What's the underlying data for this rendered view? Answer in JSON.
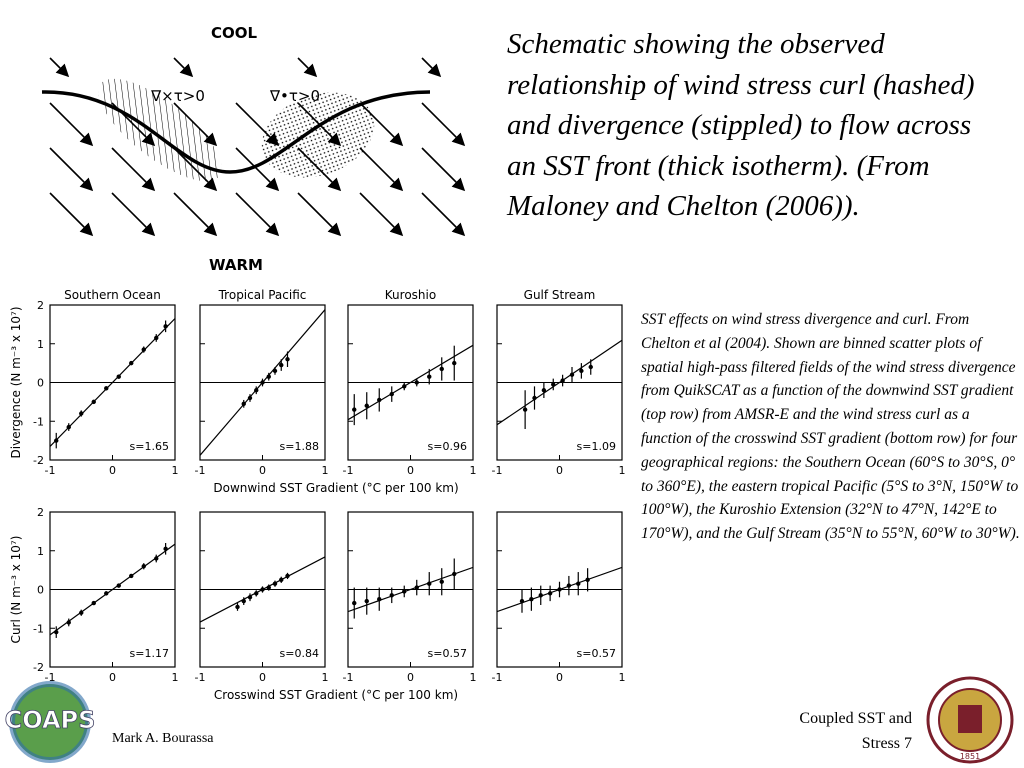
{
  "slide": {
    "caption": "Schematic showing the observed relationship of wind stress curl (hashed) and divergence (stippled) to flow across an SST front (thick isotherm). (From Maloney and Chelton (2006)).",
    "description": "SST effects on wind stress divergence and curl. From Chelton et al (2004). Shown are binned scatter plots of spatial high-pass filtered fields of the wind stress divergence from QuikSCAT as a function of the downwind SST gradient (top row) from AMSR-E and the wind stress curl as a function of the crosswind SST gradient (bottom row) for four geographical regions: the Southern Ocean (60°S to 30°S, 0° to 360°E), the eastern tropical Pacific (5°S to 3°N, 150°W to 100°W), the Kuroshio Extension (32°N to 47°N, 142°E to 170°W), and the Gulf Stream (35°N to 55°N, 60°W to 30°W).",
    "author": "Mark A. Bourassa",
    "footer_title": [
      "Coupled SST and",
      "Stress  7"
    ],
    "logo_text": "COAPS",
    "seal_year": "1851"
  },
  "schematic": {
    "top_label": "COOL",
    "bottom_label": "WARM",
    "curl_label": "∇×τ>0",
    "div_label": "∇•τ>0"
  },
  "figure": {
    "regions": [
      "Southern Ocean",
      "Tropical Pacific",
      "Kuroshio",
      "Gulf Stream"
    ],
    "rows": [
      {
        "ylabel": "Divergence (N m⁻³ x 10⁷)",
        "xlabel": "Downwind SST Gradient (°C per 100 km)"
      },
      {
        "ylabel": "Curl (N m⁻³ x 10⁷)",
        "xlabel": "Crosswind SST Gradient (°C per 100 km)"
      }
    ]
  },
  "chart_data": [
    {
      "type": "scatter",
      "slope": 1.65,
      "slope_label": "s=1.65",
      "xlim": [
        -1,
        1
      ],
      "ylim": [
        -2,
        2
      ],
      "xticks": [
        -1,
        0,
        1
      ],
      "yticks": [
        -2,
        -1,
        0,
        1,
        2
      ],
      "x": [
        -0.9,
        -0.7,
        -0.5,
        -0.3,
        -0.1,
        0.1,
        0.3,
        0.5,
        0.7,
        0.85
      ],
      "values": [
        -1.5,
        -1.15,
        -0.8,
        -0.5,
        -0.15,
        0.15,
        0.5,
        0.85,
        1.15,
        1.45
      ],
      "errors": [
        0.2,
        0.1,
        0.08,
        0.05,
        0.05,
        0.05,
        0.05,
        0.08,
        0.1,
        0.15
      ]
    },
    {
      "type": "scatter",
      "slope": 1.88,
      "slope_label": "s=1.88",
      "xlim": [
        -1,
        1
      ],
      "ylim": [
        -2,
        2
      ],
      "xticks": [
        -1,
        0,
        1
      ],
      "yticks": [
        -2,
        -1,
        0,
        1,
        2
      ],
      "x": [
        -0.3,
        -0.2,
        -0.1,
        0,
        0.1,
        0.2,
        0.3,
        0.4
      ],
      "values": [
        -0.55,
        -0.4,
        -0.2,
        0,
        0.15,
        0.3,
        0.45,
        0.6
      ],
      "errors": [
        0.1,
        0.1,
        0.1,
        0.1,
        0.1,
        0.1,
        0.15,
        0.2
      ]
    },
    {
      "type": "scatter",
      "slope": 0.96,
      "slope_label": "s=0.96",
      "xlim": [
        -1,
        1
      ],
      "ylim": [
        -2,
        2
      ],
      "xticks": [
        -1,
        0,
        1
      ],
      "yticks": [
        -2,
        -1,
        0,
        1,
        2
      ],
      "x": [
        -0.9,
        -0.7,
        -0.5,
        -0.3,
        -0.1,
        0.1,
        0.3,
        0.5,
        0.7
      ],
      "values": [
        -0.7,
        -0.6,
        -0.45,
        -0.3,
        -0.1,
        0,
        0.15,
        0.35,
        0.5
      ],
      "errors": [
        0.4,
        0.35,
        0.3,
        0.2,
        0.1,
        0.1,
        0.2,
        0.3,
        0.45
      ]
    },
    {
      "type": "scatter",
      "slope": 1.09,
      "slope_label": "s=1.09",
      "xlim": [
        -1,
        1
      ],
      "ylim": [
        -2,
        2
      ],
      "xticks": [
        -1,
        0,
        1
      ],
      "yticks": [
        -2,
        -1,
        0,
        1,
        2
      ],
      "x": [
        -0.55,
        -0.4,
        -0.25,
        -0.1,
        0.05,
        0.2,
        0.35,
        0.5
      ],
      "values": [
        -0.7,
        -0.4,
        -0.2,
        -0.05,
        0.05,
        0.2,
        0.3,
        0.4
      ],
      "errors": [
        0.5,
        0.3,
        0.2,
        0.15,
        0.15,
        0.2,
        0.2,
        0.2
      ]
    },
    {
      "type": "scatter",
      "slope": 1.17,
      "slope_label": "s=1.17",
      "xlim": [
        -1,
        1
      ],
      "ylim": [
        -2,
        2
      ],
      "xticks": [
        -1,
        0,
        1
      ],
      "yticks": [
        -2,
        -1,
        0,
        1,
        2
      ],
      "x": [
        -0.9,
        -0.7,
        -0.5,
        -0.3,
        -0.1,
        0.1,
        0.3,
        0.5,
        0.7,
        0.85
      ],
      "values": [
        -1.1,
        -0.85,
        -0.6,
        -0.35,
        -0.1,
        0.1,
        0.35,
        0.6,
        0.8,
        1.05
      ],
      "errors": [
        0.15,
        0.1,
        0.08,
        0.05,
        0.05,
        0.05,
        0.05,
        0.08,
        0.1,
        0.15
      ]
    },
    {
      "type": "scatter",
      "slope": 0.84,
      "slope_label": "s=0.84",
      "xlim": [
        -1,
        1
      ],
      "ylim": [
        -2,
        2
      ],
      "xticks": [
        -1,
        0,
        1
      ],
      "yticks": [
        -2,
        -1,
        0,
        1,
        2
      ],
      "x": [
        -0.4,
        -0.3,
        -0.2,
        -0.1,
        0,
        0.1,
        0.2,
        0.3,
        0.4
      ],
      "values": [
        -0.45,
        -0.3,
        -0.2,
        -0.1,
        0,
        0.05,
        0.15,
        0.25,
        0.35
      ],
      "errors": [
        0.1,
        0.1,
        0.1,
        0.08,
        0.08,
        0.08,
        0.08,
        0.08,
        0.08
      ]
    },
    {
      "type": "scatter",
      "slope": 0.57,
      "slope_label": "s=0.57",
      "xlim": [
        -1,
        1
      ],
      "ylim": [
        -2,
        2
      ],
      "xticks": [
        -1,
        0,
        1
      ],
      "yticks": [
        -2,
        -1,
        0,
        1,
        2
      ],
      "x": [
        -0.9,
        -0.7,
        -0.5,
        -0.3,
        -0.1,
        0.1,
        0.3,
        0.5,
        0.7
      ],
      "values": [
        -0.35,
        -0.3,
        -0.25,
        -0.15,
        -0.05,
        0.05,
        0.15,
        0.2,
        0.4
      ],
      "errors": [
        0.4,
        0.35,
        0.3,
        0.2,
        0.15,
        0.2,
        0.3,
        0.35,
        0.4
      ]
    },
    {
      "type": "scatter",
      "slope": 0.57,
      "slope_label": "s=0.57",
      "xlim": [
        -1,
        1
      ],
      "ylim": [
        -2,
        2
      ],
      "xticks": [
        -1,
        0,
        1
      ],
      "yticks": [
        -2,
        -1,
        0,
        1,
        2
      ],
      "x": [
        -0.6,
        -0.45,
        -0.3,
        -0.15,
        0,
        0.15,
        0.3,
        0.45
      ],
      "values": [
        -0.3,
        -0.25,
        -0.15,
        -0.1,
        0,
        0.1,
        0.15,
        0.25
      ],
      "errors": [
        0.3,
        0.3,
        0.25,
        0.2,
        0.2,
        0.25,
        0.3,
        0.3
      ]
    }
  ]
}
